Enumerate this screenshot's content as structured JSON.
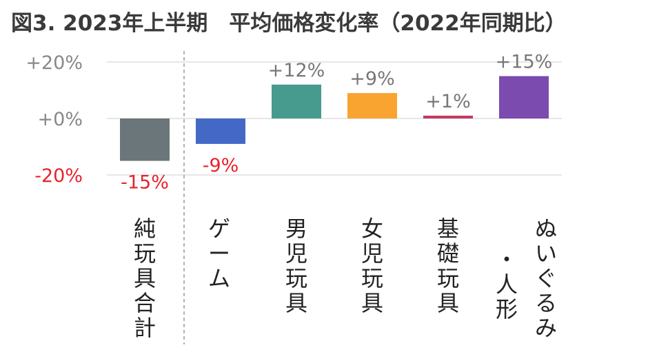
{
  "title": "図3. 2023年上半期　平均価格変化率（2022年同期比）",
  "chart_data": {
    "type": "bar",
    "title": "図3. 2023年上半期　平均価格変化率（2022年同期比）",
    "xlabel": "",
    "ylabel": "",
    "ylim": [
      -20,
      20
    ],
    "yticks": [
      {
        "value": 20,
        "label": "+20%"
      },
      {
        "value": 0,
        "label": "+0%"
      },
      {
        "value": -20,
        "label": "-20%"
      }
    ],
    "categories": [
      "純玩具合計",
      "ゲーム",
      "男児玩具",
      "女児玩具",
      "基礎玩具",
      "ぬいぐるみ・人形"
    ],
    "category_lines": [
      [
        "純",
        "玩",
        "具",
        "合",
        "計"
      ],
      [
        "ゲ",
        "ー",
        "ム"
      ],
      [
        "男",
        "児",
        "玩",
        "具"
      ],
      [
        "女",
        "児",
        "玩",
        "具"
      ],
      [
        "基",
        "礎",
        "玩",
        "具"
      ],
      [
        "ぬ",
        "い",
        "ぐ",
        "る",
        "み"
      ],
      [
        "・",
        "人",
        "形"
      ]
    ],
    "values": [
      -15,
      -9,
      12,
      9,
      1,
      15
    ],
    "data_labels": [
      "-15%",
      "-9%",
      "+12%",
      "+9%",
      "+1%",
      "+15%"
    ],
    "colors": [
      "#6a767a",
      "#4468c6",
      "#479a8e",
      "#f9a331",
      "#c23b5f",
      "#7b4bb0"
    ],
    "negative_label_color": "#e8222c",
    "positive_label_color": "#777777",
    "grid": true,
    "divider_after_category": 0
  }
}
